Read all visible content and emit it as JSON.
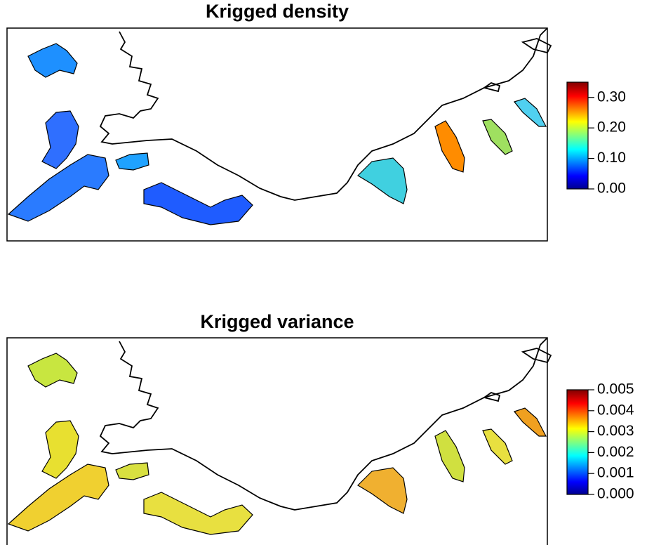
{
  "panels": [
    {
      "title": "Krigged density",
      "colorbar": {
        "lim": [
          0,
          0.35
        ],
        "ticks": [
          {
            "value": 0,
            "label": "0.00"
          },
          {
            "value": 0.1,
            "label": "0.10"
          },
          {
            "value": 0.2,
            "label": "0.20"
          },
          {
            "value": 0.3,
            "label": "0.30"
          }
        ]
      }
    },
    {
      "title": "Krigged variance",
      "colorbar": {
        "lim": [
          0,
          0.005
        ],
        "ticks": [
          {
            "value": 0,
            "label": "0.000"
          },
          {
            "value": 0.001,
            "label": "0.001"
          },
          {
            "value": 0.002,
            "label": "0.002"
          },
          {
            "value": 0.003,
            "label": "0.003"
          },
          {
            "value": 0.004,
            "label": "0.004"
          },
          {
            "value": 0.005,
            "label": "0.005"
          }
        ]
      }
    }
  ]
}
